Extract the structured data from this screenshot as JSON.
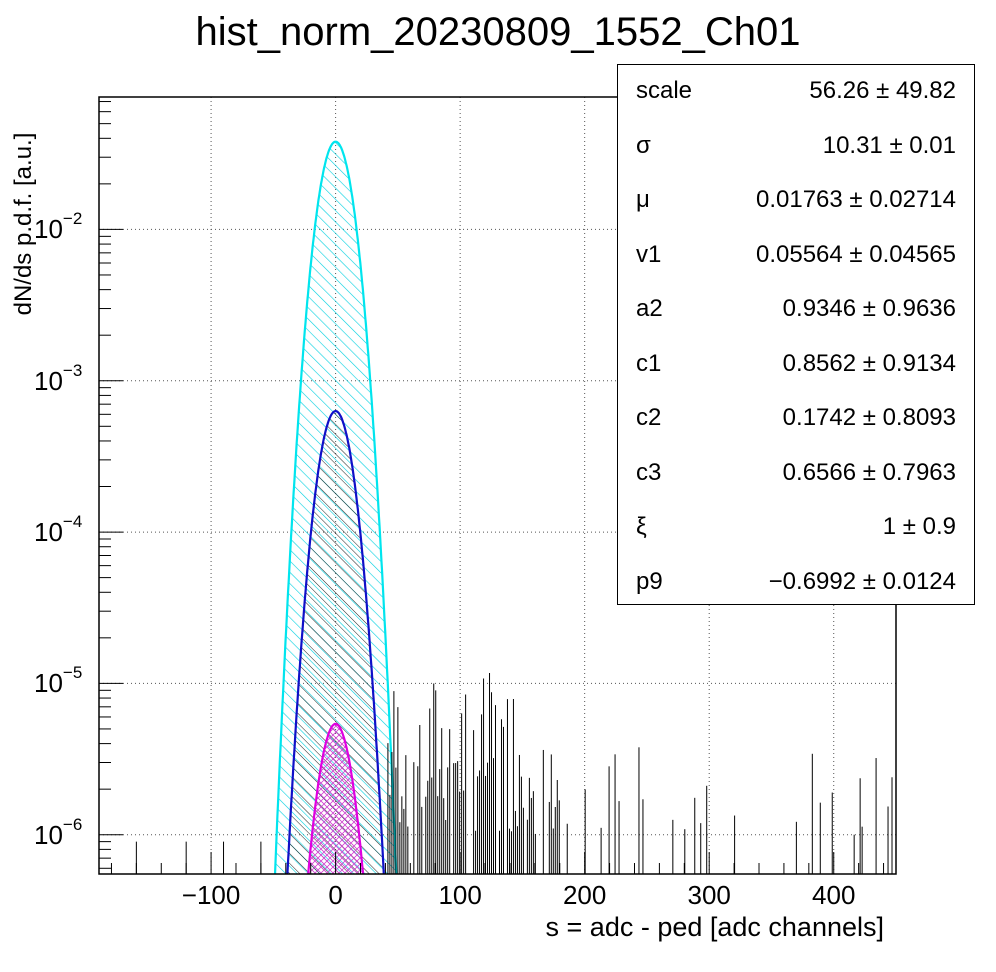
{
  "chart_data": {
    "type": "histogram",
    "title": "hist_norm_20230809_1552_Ch01",
    "xlabel": "s = adc - ped [adc channels]",
    "ylabel": "dN/ds p.d.f. [a.u.]",
    "log_y": true,
    "grid": true,
    "xlim": [
      -190,
      450
    ],
    "ylim": [
      5.5e-07,
      0.075
    ],
    "x_ticks": [
      {
        "value": -100,
        "label": "−100"
      },
      {
        "value": 0,
        "label": "0"
      },
      {
        "value": 100,
        "label": "100"
      },
      {
        "value": 200,
        "label": "200"
      },
      {
        "value": 300,
        "label": "300"
      },
      {
        "value": 400,
        "label": "400"
      }
    ],
    "y_ticks": [
      {
        "value": 0.01,
        "base": "10",
        "exp": "−2"
      },
      {
        "value": 0.001,
        "base": "10",
        "exp": "−3"
      },
      {
        "value": 0.0001,
        "base": "10",
        "exp": "−4"
      },
      {
        "value": 1e-05,
        "base": "10",
        "exp": "−5"
      },
      {
        "value": 1e-06,
        "base": "10",
        "exp": "−6"
      }
    ],
    "series": [
      {
        "role": "total-fit",
        "color": "#00e5ee",
        "fill": "hatched",
        "peak": 0.038,
        "mu": 0,
        "sigma": 10.31
      },
      {
        "role": "component-1",
        "color": "#1010c8",
        "fill": "hatched",
        "peak": 0.00063,
        "mu": 0,
        "sigma": 10.31
      },
      {
        "role": "component-2",
        "color": "#e000e0",
        "fill": "cross-hatched",
        "peak": 5.4e-06,
        "mu": 0,
        "sigma": 10.31
      }
    ],
    "tail_range": [
      42,
      450
    ],
    "tail_level": [
      1e-06,
      1.2e-05
    ],
    "stats_box": [
      {
        "name": "scale",
        "value": "56.26 ± 49.82"
      },
      {
        "name": "σ",
        "value": "10.31 ± 0.01"
      },
      {
        "name": "μ",
        "value": "0.01763 ± 0.02714"
      },
      {
        "name": "v1",
        "value": "0.05564 ± 0.04565"
      },
      {
        "name": "a2",
        "value": "0.9346 ± 0.9636"
      },
      {
        "name": "c1",
        "value": "0.8562 ± 0.9134"
      },
      {
        "name": "c2",
        "value": "0.1742 ± 0.8093"
      },
      {
        "name": "c3",
        "value": "0.6566 ± 0.7963"
      },
      {
        "name": "ξ",
        "value": "1 ± 0.9"
      },
      {
        "name": "p9",
        "value": "−0.6992 ± 0.0124"
      }
    ]
  }
}
